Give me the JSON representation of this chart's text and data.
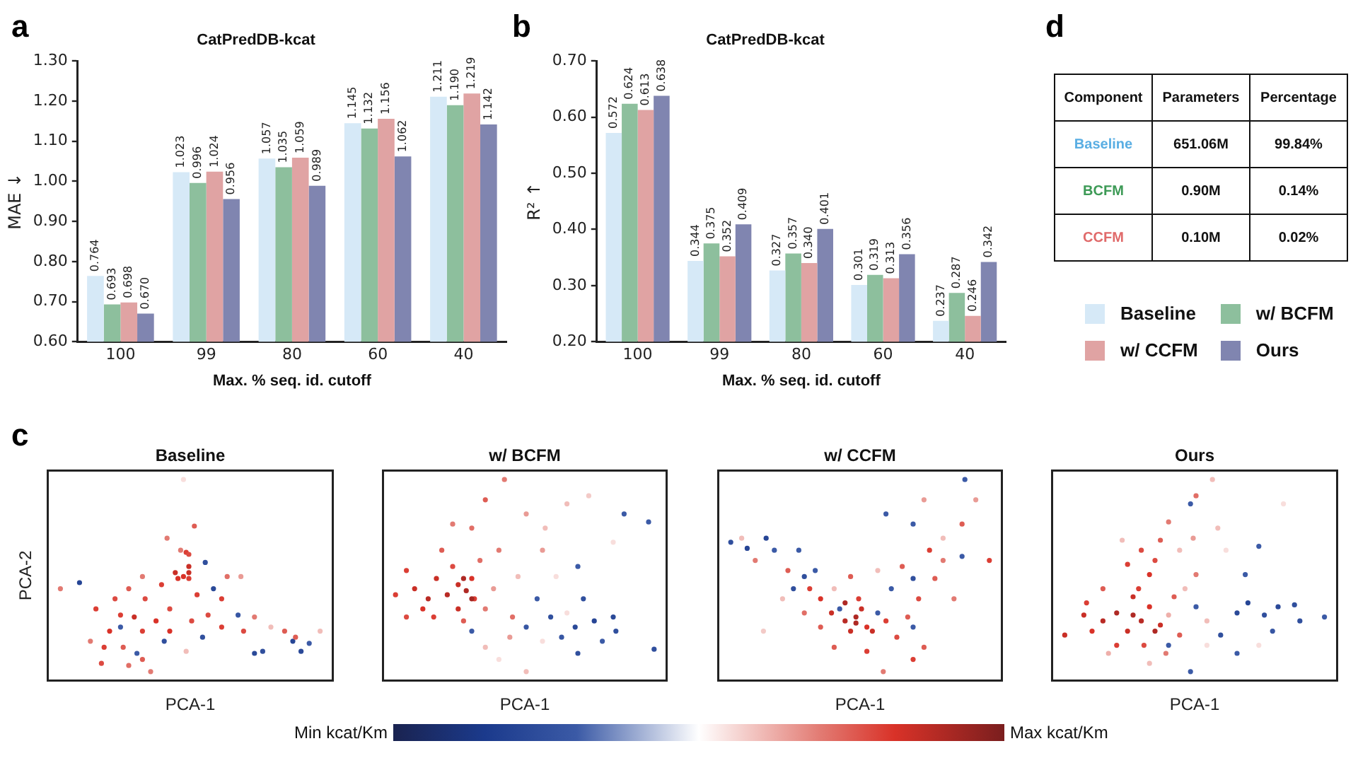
{
  "chart_data": [
    {
      "type": "bar",
      "annotations": [
        "a"
      ],
      "title": "CatPredDB-kcat",
      "xlabel": "Max. % seq. id. cutoff",
      "ylabel": "MAE ↓",
      "categories": [
        "100",
        "99",
        "80",
        "60",
        "40"
      ],
      "ylim": [
        0.6,
        1.3
      ],
      "yticks": [
        {
          "value": 0.6,
          "label": "0.60"
        },
        {
          "value": 0.7,
          "label": "0.70"
        },
        {
          "value": 0.8,
          "label": "0.80"
        },
        {
          "value": 0.9,
          "label": "0.90"
        },
        {
          "value": 1.0,
          "label": "1.00"
        },
        {
          "value": 1.1,
          "label": "1.10"
        },
        {
          "value": 1.2,
          "label": "1.20"
        },
        {
          "value": 1.3,
          "label": "1.30"
        }
      ],
      "series": [
        {
          "color": "#d6e9f7",
          "values": [
            0.764,
            1.023,
            1.057,
            1.145,
            1.211
          ],
          "value_labels": [
            "0.764",
            "1.023",
            "1.057",
            "1.145",
            "1.211"
          ]
        },
        {
          "color": "#8dbf9d",
          "values": [
            0.693,
            0.996,
            1.035,
            1.132,
            1.19
          ],
          "value_labels": [
            "0.693",
            "0.996",
            "1.035",
            "1.132",
            "1.190"
          ]
        },
        {
          "color": "#e0a3a3",
          "values": [
            0.698,
            1.024,
            1.059,
            1.156,
            1.219
          ],
          "value_labels": [
            "0.698",
            "1.024",
            "1.059",
            "1.156",
            "1.219"
          ]
        },
        {
          "color": "#8085b0",
          "values": [
            0.67,
            0.956,
            0.989,
            1.062,
            1.142
          ],
          "value_labels": [
            "0.670",
            "0.956",
            "0.989",
            "1.062",
            "1.142"
          ]
        }
      ]
    },
    {
      "type": "bar",
      "annotations": [
        "b"
      ],
      "title": "CatPredDB-kcat",
      "xlabel": "Max. % seq. id. cutoff",
      "ylabel": "R² ↑",
      "categories": [
        "100",
        "99",
        "80",
        "60",
        "40"
      ],
      "ylim": [
        0.2,
        0.7
      ],
      "yticks": [
        {
          "value": 0.2,
          "label": "0.20"
        },
        {
          "value": 0.3,
          "label": "0.30"
        },
        {
          "value": 0.4,
          "label": "0.40"
        },
        {
          "value": 0.5,
          "label": "0.50"
        },
        {
          "value": 0.6,
          "label": "0.60"
        },
        {
          "value": 0.7,
          "label": "0.70"
        }
      ],
      "legend": "right",
      "series": [
        {
          "name": "Baseline",
          "color": "#d6e9f7",
          "values": [
            0.572,
            0.344,
            0.327,
            0.301,
            0.237
          ],
          "value_labels": [
            "0.572",
            "0.344",
            "0.327",
            "0.301",
            "0.237"
          ]
        },
        {
          "name": "w/ BCFM",
          "color": "#8dbf9d",
          "values": [
            0.624,
            0.375,
            0.357,
            0.319,
            0.287
          ],
          "value_labels": [
            "0.624",
            "0.375",
            "0.357",
            "0.319",
            "0.287"
          ]
        },
        {
          "name": "w/ CCFM",
          "color": "#e0a3a3",
          "values": [
            0.613,
            0.352,
            0.34,
            0.313,
            0.246
          ],
          "value_labels": [
            "0.613",
            "0.352",
            "0.340",
            "0.313",
            "0.246"
          ]
        },
        {
          "name": "Ours",
          "color": "#8085b0",
          "values": [
            0.638,
            0.409,
            0.401,
            0.356,
            0.342
          ],
          "value_labels": [
            "0.638",
            "0.409",
            "0.401",
            "0.356",
            "0.342"
          ]
        }
      ]
    },
    {
      "type": "other",
      "annotations": [
        "d"
      ],
      "ylabel": "Component",
      "categories": [
        "Parameters",
        "Percentage"
      ],
      "y_categories": [
        "Baseline",
        "BCFM",
        "CCFM"
      ],
      "colors": [
        "#5aaee3",
        "#3d9a56",
        "#e06a6a"
      ],
      "cell_labels": [
        [
          "651.06M",
          "99.84%"
        ],
        [
          "0.90M",
          "0.14%"
        ],
        [
          "0.10M",
          "0.02%"
        ]
      ]
    },
    {
      "type": "other",
      "annotations": [
        "c"
      ],
      "title": "Baseline",
      "xlabel": "PCA-1",
      "ylabel": "PCA-2"
    },
    {
      "type": "other",
      "title": "w/ BCFM",
      "xlabel": "PCA-1"
    },
    {
      "type": "other",
      "title": "w/ CCFM",
      "xlabel": "PCA-1"
    },
    {
      "type": "other",
      "title": "Ours",
      "xlabel": "PCA-1"
    },
    {
      "type": "other",
      "annotations": [
        "Min kcat/Km",
        "Max kcat/Km"
      ]
    }
  ]
}
